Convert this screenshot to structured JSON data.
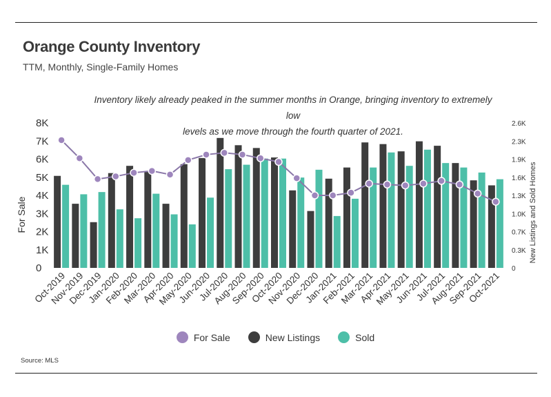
{
  "title": "Orange County Inventory",
  "subtitle": "TTM, Monthly, Single-Family Homes",
  "annotation_line1": "Inventory likely already peaked in the summer months in Orange, bringing inventory to extremely low",
  "annotation_line2": "levels as we move through the fourth quarter of 2021.",
  "source": "Source:  MLS",
  "colors": {
    "for_sale": "#9e86bd",
    "for_sale_line": "#8a77a8",
    "new_listings": "#3d3d3d",
    "sold": "#4dbfa8"
  },
  "chart_data": {
    "type": "bar",
    "categories": [
      "Oct-2019",
      "Nov-2019",
      "Dec-2019",
      "Jan-2020",
      "Feb-2020",
      "Mar-2020",
      "Apr-2020",
      "May-2020",
      "Jun-2020",
      "Jul-2020",
      "Aug-2020",
      "Sep-2020",
      "Oct-2020",
      "Nov-2020",
      "Dec-2020",
      "Jan-2021",
      "Feb-2021",
      "Mar-2021",
      "Apr-2021",
      "May-2021",
      "Jun-2021",
      "Jul-2021",
      "Aug-2021",
      "Sep-2021",
      "Oct-2021"
    ],
    "series": [
      {
        "name": "For Sale",
        "type": "line",
        "axis": "left",
        "values": [
          7050,
          6050,
          4900,
          5050,
          5250,
          5350,
          5150,
          5950,
          6250,
          6350,
          6250,
          6050,
          5850,
          4950,
          4000,
          4000,
          4150,
          4650,
          4600,
          4550,
          4650,
          4800,
          4600,
          4100,
          3650
        ]
      },
      {
        "name": "New Listings",
        "type": "bar",
        "axis": "right",
        "values": [
          1650,
          1150,
          820,
          1700,
          1830,
          1720,
          1150,
          1860,
          1970,
          2330,
          2200,
          2150,
          1980,
          1390,
          1020,
          1600,
          1800,
          2250,
          2220,
          2090,
          2270,
          2190,
          1880,
          1570,
          1480
        ]
      },
      {
        "name": "Sold",
        "type": "bar",
        "axis": "right",
        "values": [
          1490,
          1320,
          1360,
          1050,
          890,
          1330,
          960,
          780,
          1260,
          1770,
          1850,
          1960,
          1960,
          1620,
          1760,
          930,
          1240,
          1800,
          2070,
          1830,
          2120,
          1880,
          1800,
          1710,
          1590
        ]
      }
    ],
    "yaxis_left": {
      "label": "For Sale",
      "min": 0,
      "max": 8000,
      "ticks": [
        "0",
        "1K",
        "2K",
        "3K",
        "4K",
        "5K",
        "6K",
        "7K",
        "8K"
      ]
    },
    "yaxis_right": {
      "label": "New Listings and Sold Homes",
      "min": 0,
      "max": 2600,
      "ticks": [
        "0",
        "0.3K",
        "0.7K",
        "1.0K",
        "1.3K",
        "1.6K",
        "1.9K",
        "2.3K",
        "2.6K"
      ]
    },
    "grid": false,
    "legend": "bottom-center"
  }
}
